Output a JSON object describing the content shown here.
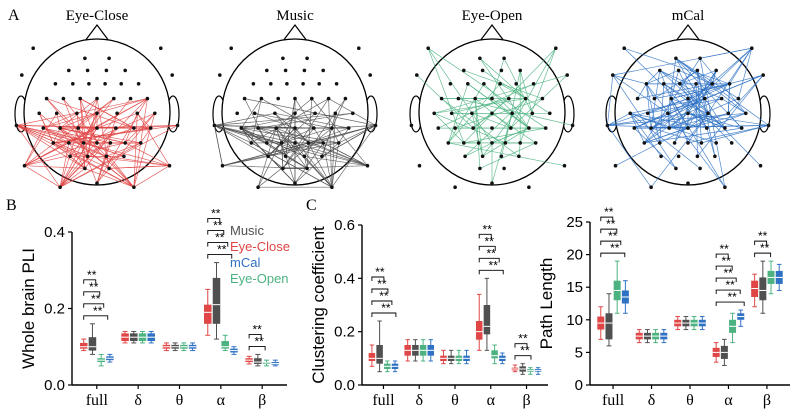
{
  "panel_letters": {
    "a": "A",
    "b": "B",
    "c": "C"
  },
  "colors": {
    "Music": "#505050",
    "Eye-Close": "#e04646",
    "mCal": "#2f72c4",
    "Eye-Open": "#4cb380",
    "axis": "#000000"
  },
  "heads": [
    {
      "title": "Eye-Close",
      "color": "#e04646",
      "edge_region": "posterior (parietal/occipital), dense"
    },
    {
      "title": "Music",
      "color": "#505050",
      "edge_region": "posterior (parietal/occipital), dense"
    },
    {
      "title": "Eye-Open",
      "color": "#4cb380",
      "edge_region": "central and frontal-right, diffuse"
    },
    {
      "title": "mCal",
      "color": "#2f72c4",
      "edge_region": "whole head, long-range fronto-temporal"
    }
  ],
  "legend": [
    "Music",
    "Eye-Close",
    "mCal",
    "Eye-Open"
  ],
  "significance_label": "**",
  "chart_data": [
    {
      "type": "box",
      "ylabel": "Whole brain PLI",
      "ylim": [
        0,
        0.4
      ],
      "yticks": [
        "0.0",
        "0.2",
        "0.4"
      ],
      "categories": [
        "full",
        "δ",
        "θ",
        "α",
        "β"
      ],
      "group_order": [
        "Eye-Close",
        "Music",
        "Eye-Open",
        "mCal"
      ],
      "series": [
        {
          "name": "Eye-Close",
          "boxes": [
            [
              0.09,
              0.095,
              0.1,
              0.11,
              0.12
            ],
            [
              0.11,
              0.115,
              0.125,
              0.135,
              0.14
            ],
            [
              0.09,
              0.095,
              0.1,
              0.105,
              0.11
            ],
            [
              0.13,
              0.16,
              0.19,
              0.21,
              0.25
            ],
            [
              0.055,
              0.06,
              0.065,
              0.07,
              0.075
            ]
          ]
        },
        {
          "name": "Music",
          "boxes": [
            [
              0.08,
              0.09,
              0.1,
              0.125,
              0.16
            ],
            [
              0.11,
              0.115,
              0.125,
              0.135,
              0.14
            ],
            [
              0.09,
              0.095,
              0.1,
              0.105,
              0.11
            ],
            [
              0.12,
              0.16,
              0.21,
              0.28,
              0.32
            ],
            [
              0.05,
              0.055,
              0.06,
              0.07,
              0.08
            ]
          ]
        },
        {
          "name": "Eye-Open",
          "boxes": [
            [
              0.05,
              0.06,
              0.065,
              0.07,
              0.08
            ],
            [
              0.11,
              0.115,
              0.125,
              0.135,
              0.14
            ],
            [
              0.09,
              0.095,
              0.1,
              0.105,
              0.11
            ],
            [
              0.09,
              0.095,
              0.1,
              0.115,
              0.13
            ],
            [
              0.05,
              0.055,
              0.058,
              0.06,
              0.065
            ]
          ]
        },
        {
          "name": "mCal",
          "boxes": [
            [
              0.06,
              0.065,
              0.07,
              0.075,
              0.08
            ],
            [
              0.11,
              0.115,
              0.125,
              0.135,
              0.14
            ],
            [
              0.09,
              0.095,
              0.1,
              0.105,
              0.11
            ],
            [
              0.08,
              0.085,
              0.09,
              0.095,
              0.1
            ],
            [
              0.05,
              0.053,
              0.056,
              0.06,
              0.065
            ]
          ]
        }
      ],
      "significance": {
        "full": 4,
        "α": 4,
        "β": 2
      }
    },
    {
      "type": "box",
      "ylabel": "Clustering coefficient",
      "ylim": [
        0,
        0.6
      ],
      "yticks": [
        "0.0",
        "0.2",
        "0.4",
        "0.6"
      ],
      "categories": [
        "full",
        "δ",
        "θ",
        "α",
        "β"
      ],
      "group_order": [
        "Eye-Close",
        "Music",
        "Eye-Open",
        "mCal"
      ],
      "series": [
        {
          "name": "Eye-Close",
          "boxes": [
            [
              0.07,
              0.09,
              0.1,
              0.12,
              0.15
            ],
            [
              0.09,
              0.11,
              0.13,
              0.15,
              0.17
            ],
            [
              0.08,
              0.09,
              0.1,
              0.11,
              0.13
            ],
            [
              0.13,
              0.17,
              0.2,
              0.24,
              0.34
            ],
            [
              0.05,
              0.055,
              0.06,
              0.065,
              0.075
            ]
          ]
        },
        {
          "name": "Music",
          "boxes": [
            [
              0.05,
              0.08,
              0.1,
              0.15,
              0.24
            ],
            [
              0.09,
              0.11,
              0.13,
              0.15,
              0.17
            ],
            [
              0.08,
              0.09,
              0.1,
              0.11,
              0.13
            ],
            [
              0.13,
              0.19,
              0.22,
              0.3,
              0.4
            ],
            [
              0.04,
              0.05,
              0.06,
              0.07,
              0.08
            ]
          ]
        },
        {
          "name": "Eye-Open",
          "boxes": [
            [
              0.05,
              0.06,
              0.07,
              0.08,
              0.09
            ],
            [
              0.09,
              0.11,
              0.13,
              0.15,
              0.17
            ],
            [
              0.08,
              0.09,
              0.1,
              0.11,
              0.13
            ],
            [
              0.08,
              0.1,
              0.11,
              0.13,
              0.15
            ],
            [
              0.04,
              0.05,
              0.055,
              0.06,
              0.065
            ]
          ]
        },
        {
          "name": "mCal",
          "boxes": [
            [
              0.05,
              0.06,
              0.07,
              0.08,
              0.09
            ],
            [
              0.09,
              0.11,
              0.13,
              0.15,
              0.17
            ],
            [
              0.08,
              0.09,
              0.1,
              0.11,
              0.13
            ],
            [
              0.08,
              0.09,
              0.1,
              0.11,
              0.12
            ],
            [
              0.04,
              0.05,
              0.055,
              0.06,
              0.065
            ]
          ]
        }
      ],
      "significance": {
        "full": 4,
        "α": 4,
        "β": 2
      }
    },
    {
      "type": "box",
      "ylabel": "Path Length",
      "ylim": [
        0,
        25
      ],
      "yticks": [
        "0",
        "5",
        "10",
        "15",
        "20",
        "25"
      ],
      "categories": [
        "full",
        "δ",
        "θ",
        "α",
        "β"
      ],
      "group_order": [
        "Eye-Close",
        "Music",
        "Eye-Open",
        "mCal"
      ],
      "series": [
        {
          "name": "Eye-Close",
          "boxes": [
            [
              7,
              8.5,
              9.5,
              10.5,
              12
            ],
            [
              6.5,
              7,
              7.5,
              8,
              8.5
            ],
            [
              8.5,
              9,
              9.5,
              10,
              10.5
            ],
            [
              3.5,
              4.3,
              5,
              5.7,
              6.5
            ],
            [
              12,
              13.5,
              14.8,
              16,
              17
            ]
          ]
        },
        {
          "name": "Music",
          "boxes": [
            [
              6,
              7,
              9.5,
              11,
              14
            ],
            [
              6.5,
              7,
              7.5,
              8,
              8.5
            ],
            [
              8.5,
              9,
              9.5,
              10,
              10.5
            ],
            [
              3,
              4,
              5,
              6,
              7
            ],
            [
              11,
              13,
              14.5,
              16.5,
              19
            ]
          ]
        },
        {
          "name": "Eye-Open",
          "boxes": [
            [
              11,
              13,
              14.5,
              16,
              19
            ],
            [
              6.5,
              7,
              7.5,
              8,
              8.5
            ],
            [
              8.5,
              9,
              9.5,
              10,
              10.5
            ],
            [
              6.5,
              8,
              9,
              10,
              11
            ],
            [
              14,
              15.5,
              16.5,
              17.5,
              19
            ]
          ]
        },
        {
          "name": "mCal",
          "boxes": [
            [
              11,
              12.5,
              13.5,
              14.5,
              16
            ],
            [
              6.5,
              7,
              7.5,
              8,
              8.5
            ],
            [
              8.5,
              9,
              9.5,
              10,
              10.5
            ],
            [
              9,
              10,
              10.5,
              11,
              11.5
            ],
            [
              14.5,
              15.5,
              16.5,
              17.5,
              18.5
            ]
          ]
        }
      ],
      "significance": {
        "full": 4,
        "α": 5,
        "β": 2
      }
    }
  ]
}
